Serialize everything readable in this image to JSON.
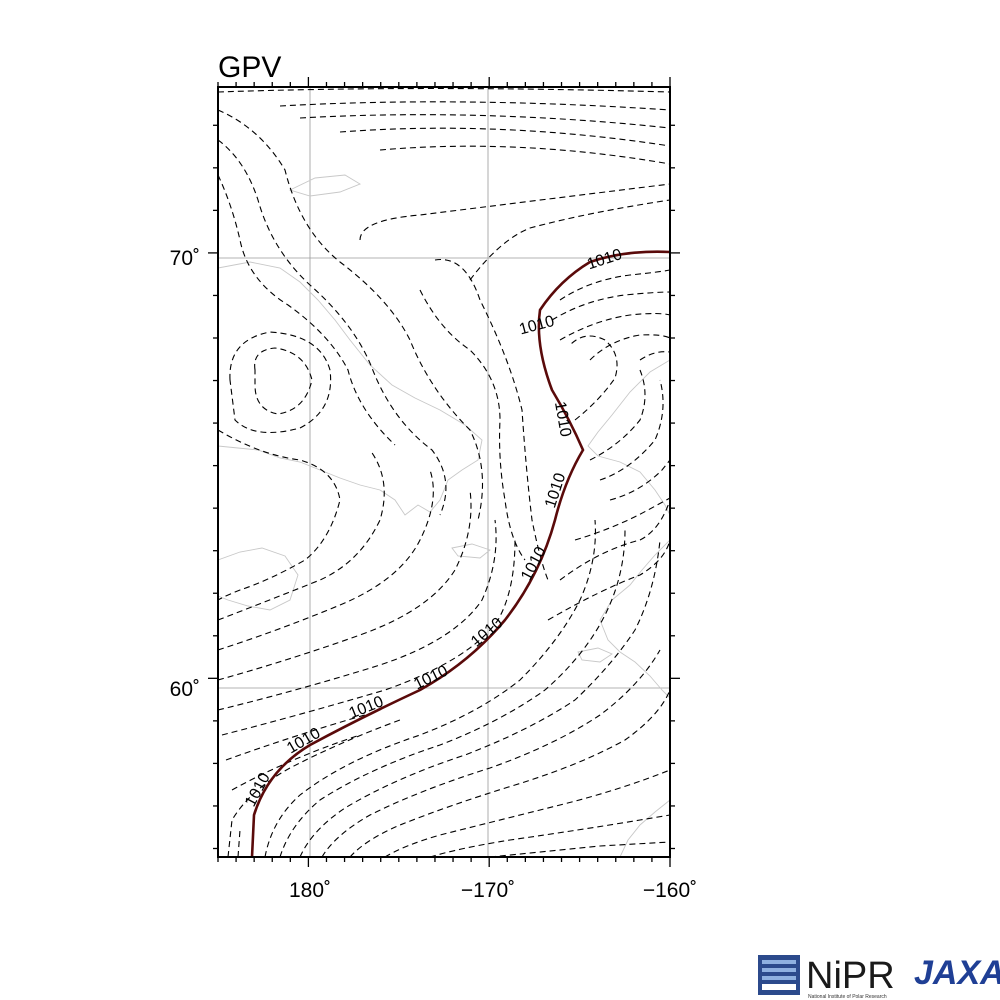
{
  "map": {
    "title": "GPV",
    "lon_range": [
      -185,
      -160
    ],
    "lat_range": [
      55.8,
      73.9
    ],
    "xtick_labels": [
      "180˚",
      "−170˚",
      "−160˚"
    ],
    "ytick_labels": [
      "70˚",
      "60˚"
    ],
    "contour_label": "1010",
    "highlight_contour_color": "#5a0a0a",
    "contour_style": "dashed",
    "grid": true
  },
  "logos": {
    "nipr": "NiPR",
    "nipr_sub": "National Institute of Polar Research",
    "jaxa": "JAXA"
  }
}
